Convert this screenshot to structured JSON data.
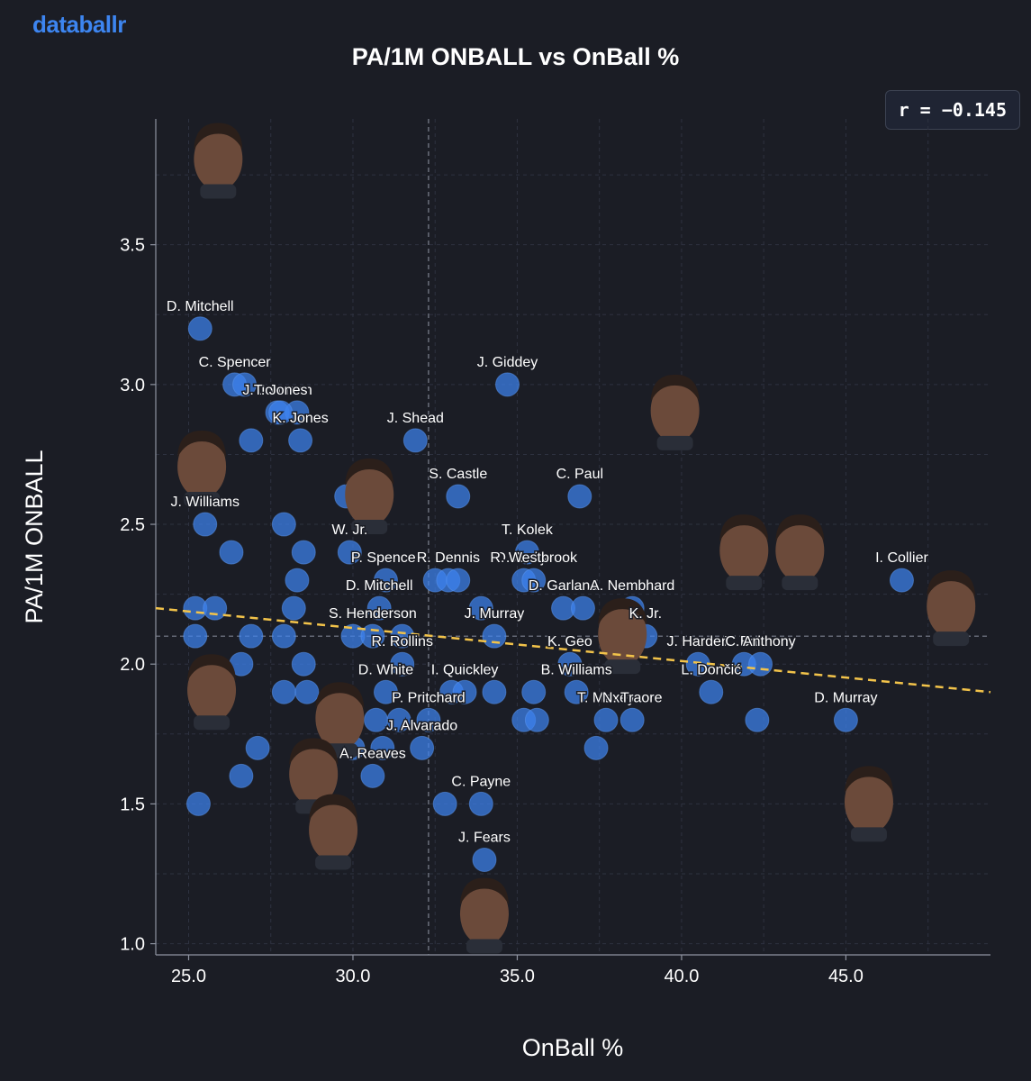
{
  "brand": "databallr",
  "correlation_label": "r = −0.145",
  "chart_data": {
    "type": "scatter",
    "title": "PA/1M ONBALL vs OnBall %",
    "xlabel": "OnBall %",
    "ylabel": "PA/1M ONBALL",
    "xlim": [
      24,
      49.4
    ],
    "ylim": [
      0.96,
      3.95
    ],
    "xticks": [
      25.0,
      30.0,
      35.0,
      40.0,
      45.0
    ],
    "yticks": [
      1.0,
      1.5,
      2.0,
      2.5,
      3.0,
      3.5
    ],
    "median_x": 32.3,
    "median_y": 2.1,
    "trendline": {
      "x0": 24,
      "y0": 2.2,
      "x1": 49.4,
      "y1": 1.9
    },
    "grid": true,
    "colors": {
      "point": "#3d82ee",
      "trend": "#f2c34a",
      "grid": "#2e3240",
      "axis": "#8e93a0"
    },
    "points": [
      {
        "x": 25.35,
        "y": 3.2,
        "label": "D. Mitchell"
      },
      {
        "x": 26.4,
        "y": 3.0,
        "label": "C. Spencer"
      },
      {
        "x": 26.7,
        "y": 3.0,
        "label": ""
      },
      {
        "x": 27.7,
        "y": 2.9,
        "label": "J. Johnson"
      },
      {
        "x": 28.3,
        "y": 2.9,
        "label": ""
      },
      {
        "x": 27.8,
        "y": 2.9,
        "label": "T. Jones"
      },
      {
        "x": 26.9,
        "y": 2.8,
        "label": ""
      },
      {
        "x": 28.4,
        "y": 2.8,
        "label": "K. Jones"
      },
      {
        "x": 31.9,
        "y": 2.8,
        "label": "J. Shead"
      },
      {
        "x": 34.7,
        "y": 3.0,
        "label": "J. Giddey"
      },
      {
        "x": 29.8,
        "y": 2.6,
        "label": ""
      },
      {
        "x": 33.2,
        "y": 2.6,
        "label": "S. Castle"
      },
      {
        "x": 36.9,
        "y": 2.6,
        "label": "C. Paul"
      },
      {
        "x": 25.5,
        "y": 2.5,
        "label": "J. Williams"
      },
      {
        "x": 27.9,
        "y": 2.5,
        "label": ""
      },
      {
        "x": 26.3,
        "y": 2.4,
        "label": ""
      },
      {
        "x": 28.5,
        "y": 2.4,
        "label": ""
      },
      {
        "x": 29.9,
        "y": 2.4,
        "label": "W. Jr."
      },
      {
        "x": 35.3,
        "y": 2.4,
        "label": "T. Kolek"
      },
      {
        "x": 28.3,
        "y": 2.3,
        "label": ""
      },
      {
        "x": 31.0,
        "y": 2.3,
        "label": "P. Spencer"
      },
      {
        "x": 32.5,
        "y": 2.3,
        "label": ""
      },
      {
        "x": 32.9,
        "y": 2.3,
        "label": "R. Dennis"
      },
      {
        "x": 33.2,
        "y": 2.3,
        "label": ""
      },
      {
        "x": 35.2,
        "y": 2.3,
        "label": "D. Avdija"
      },
      {
        "x": 35.5,
        "y": 2.3,
        "label": "R. Westbrook"
      },
      {
        "x": 46.7,
        "y": 2.3,
        "label": "I. Collier"
      },
      {
        "x": 25.2,
        "y": 2.2,
        "label": ""
      },
      {
        "x": 25.8,
        "y": 2.2,
        "label": ""
      },
      {
        "x": 28.2,
        "y": 2.2,
        "label": ""
      },
      {
        "x": 30.8,
        "y": 2.2,
        "label": "D. Mitchell"
      },
      {
        "x": 33.9,
        "y": 2.2,
        "label": ""
      },
      {
        "x": 36.4,
        "y": 2.2,
        "label": "D. Garland"
      },
      {
        "x": 37.0,
        "y": 2.2,
        "label": ""
      },
      {
        "x": 38.5,
        "y": 2.2,
        "label": "A. Nembhard"
      },
      {
        "x": 25.2,
        "y": 2.1,
        "label": ""
      },
      {
        "x": 26.9,
        "y": 2.1,
        "label": ""
      },
      {
        "x": 27.9,
        "y": 2.1,
        "label": ""
      },
      {
        "x": 30.0,
        "y": 2.1,
        "label": ""
      },
      {
        "x": 30.6,
        "y": 2.1,
        "label": "S. Henderson"
      },
      {
        "x": 31.5,
        "y": 2.1,
        "label": ""
      },
      {
        "x": 34.3,
        "y": 2.1,
        "label": "J. Murray"
      },
      {
        "x": 38.9,
        "y": 2.1,
        "label": "K. Jr."
      },
      {
        "x": 41.9,
        "y": 2.0,
        "label": "L. Ball"
      },
      {
        "x": 26.6,
        "y": 2.0,
        "label": ""
      },
      {
        "x": 28.5,
        "y": 2.0,
        "label": ""
      },
      {
        "x": 31.5,
        "y": 2.0,
        "label": "R. Rollins"
      },
      {
        "x": 36.6,
        "y": 2.0,
        "label": "K. Geo"
      },
      {
        "x": 40.5,
        "y": 2.0,
        "label": "J. Harden"
      },
      {
        "x": 42.4,
        "y": 2.0,
        "label": "C. Anthony"
      },
      {
        "x": 27.9,
        "y": 1.9,
        "label": ""
      },
      {
        "x": 28.6,
        "y": 1.9,
        "label": ""
      },
      {
        "x": 31.0,
        "y": 1.9,
        "label": "D. White"
      },
      {
        "x": 33.0,
        "y": 1.9,
        "label": ""
      },
      {
        "x": 33.4,
        "y": 1.9,
        "label": "I. Quickley"
      },
      {
        "x": 34.3,
        "y": 1.9,
        "label": ""
      },
      {
        "x": 35.5,
        "y": 1.9,
        "label": ""
      },
      {
        "x": 36.8,
        "y": 1.9,
        "label": "B. Williams"
      },
      {
        "x": 40.9,
        "y": 1.9,
        "label": "L. Dončić"
      },
      {
        "x": 30.7,
        "y": 1.8,
        "label": ""
      },
      {
        "x": 31.4,
        "y": 1.8,
        "label": ""
      },
      {
        "x": 32.3,
        "y": 1.8,
        "label": "P. Pritchard"
      },
      {
        "x": 35.2,
        "y": 1.8,
        "label": ""
      },
      {
        "x": 35.6,
        "y": 1.8,
        "label": ""
      },
      {
        "x": 37.7,
        "y": 1.8,
        "label": "T. Maxey"
      },
      {
        "x": 38.5,
        "y": 1.8,
        "label": "N. Traore"
      },
      {
        "x": 42.3,
        "y": 1.8,
        "label": ""
      },
      {
        "x": 45.0,
        "y": 1.8,
        "label": "D. Murray"
      },
      {
        "x": 27.1,
        "y": 1.7,
        "label": ""
      },
      {
        "x": 30.0,
        "y": 1.7,
        "label": ""
      },
      {
        "x": 30.9,
        "y": 1.7,
        "label": ""
      },
      {
        "x": 32.1,
        "y": 1.7,
        "label": "J. Alvarado"
      },
      {
        "x": 37.4,
        "y": 1.7,
        "label": ""
      },
      {
        "x": 26.6,
        "y": 1.6,
        "label": ""
      },
      {
        "x": 30.6,
        "y": 1.6,
        "label": "A. Reaves"
      },
      {
        "x": 25.3,
        "y": 1.5,
        "label": ""
      },
      {
        "x": 32.8,
        "y": 1.5,
        "label": ""
      },
      {
        "x": 33.9,
        "y": 1.5,
        "label": "C. Payne"
      },
      {
        "x": 34.0,
        "y": 1.3,
        "label": "J. Fears"
      }
    ],
    "headshots": [
      {
        "x": 25.9,
        "y": 3.8,
        "label": ""
      },
      {
        "x": 39.8,
        "y": 2.9,
        "label": ""
      },
      {
        "x": 25.4,
        "y": 2.7,
        "label": ""
      },
      {
        "x": 30.5,
        "y": 2.6,
        "label": ""
      },
      {
        "x": 41.9,
        "y": 2.4,
        "label": ""
      },
      {
        "x": 43.6,
        "y": 2.4,
        "label": ""
      },
      {
        "x": 48.2,
        "y": 2.2,
        "label": ""
      },
      {
        "x": 38.2,
        "y": 2.1,
        "label": ""
      },
      {
        "x": 25.7,
        "y": 1.9,
        "label": ""
      },
      {
        "x": 29.6,
        "y": 1.8,
        "label": ""
      },
      {
        "x": 28.8,
        "y": 1.6,
        "label": ""
      },
      {
        "x": 29.4,
        "y": 1.4,
        "label": ""
      },
      {
        "x": 45.7,
        "y": 1.5,
        "label": ""
      },
      {
        "x": 34.0,
        "y": 1.1,
        "label": ""
      }
    ]
  }
}
